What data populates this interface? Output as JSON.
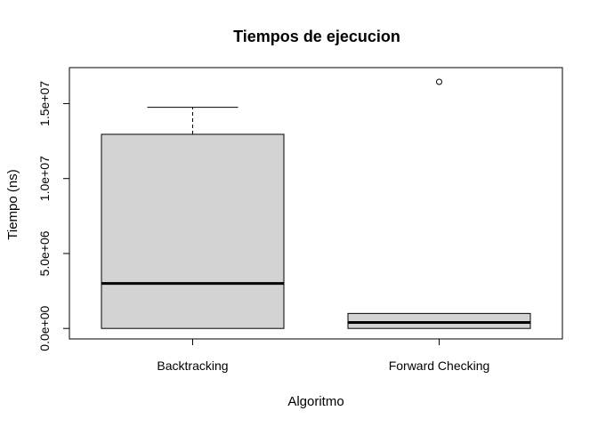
{
  "chart_data": {
    "type": "boxplot",
    "title": "Tiempos de ejecucion",
    "xlabel": "Algoritmo",
    "ylabel": "Tiempo (ns)",
    "categories": [
      "Backtracking",
      "Forward Checking"
    ],
    "ylim": [
      -700000,
      17400000
    ],
    "yticks": [
      0,
      5000000,
      10000000,
      15000000
    ],
    "ytick_labels": [
      "0.0e+00",
      "5.0e+06",
      "1.0e+07",
      "1.5e+07"
    ],
    "boxes": [
      {
        "name": "Backtracking",
        "whisker_low": 0,
        "q1": 0,
        "median": 3000000,
        "q3": 12950000,
        "whisker_high": 14750000,
        "outliers": []
      },
      {
        "name": "Forward Checking",
        "whisker_low": 0,
        "q1": 0,
        "median": 400000,
        "q3": 1000000,
        "whisker_high": 1000000,
        "outliers": [
          16450000
        ]
      }
    ],
    "box_fill": "#d3d3d3",
    "grid": false,
    "legend": "none"
  }
}
